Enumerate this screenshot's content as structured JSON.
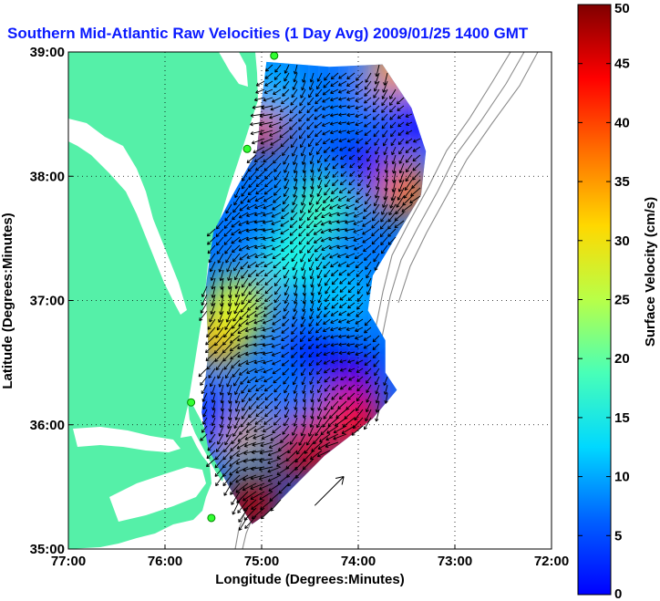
{
  "figure": {
    "title": "Southern Mid-Atlantic Raw Velocities (1 Day Avg) 2009/01/25 1400 GMT",
    "title_color": "#0a1aff",
    "background": "#ffffff"
  },
  "chart_data": {
    "type": "heatmap",
    "title": "Southern Mid-Atlantic Raw Velocities (1 Day Avg) 2009/01/25 1400 GMT",
    "xlabel": "Longitude (Degrees:Minutes)",
    "ylabel": "Latitude (Degrees:Minutes)",
    "xlim": [
      -77,
      -72
    ],
    "ylim": [
      35,
      39
    ],
    "x_ticks": [
      {
        "value": -77,
        "label": "77:00"
      },
      {
        "value": -76,
        "label": "76:00"
      },
      {
        "value": -75,
        "label": "75:00"
      },
      {
        "value": -74,
        "label": "74:00"
      },
      {
        "value": -73,
        "label": "73:00"
      },
      {
        "value": -72,
        "label": "72:00"
      }
    ],
    "y_ticks": [
      {
        "value": 35,
        "label": "35:00"
      },
      {
        "value": 36,
        "label": "36:00"
      },
      {
        "value": 37,
        "label": "37:00"
      },
      {
        "value": 38,
        "label": "38:00"
      },
      {
        "value": 39,
        "label": "39:00"
      }
    ],
    "grid": true,
    "colorbar": {
      "label": "Surface Velocity (cm/s)",
      "min": 0,
      "max": 50,
      "ticks": [
        0,
        5,
        10,
        15,
        20,
        25,
        30,
        35,
        40,
        45,
        50
      ],
      "colormap": "jet"
    },
    "land_color": "#55f0a8",
    "water_color": "#ffffff",
    "coverage_polygon_lonlat": [
      [
        -74.95,
        38.92
      ],
      [
        -74.3,
        38.88
      ],
      [
        -73.75,
        38.9
      ],
      [
        -73.45,
        38.55
      ],
      [
        -73.3,
        38.2
      ],
      [
        -73.35,
        37.85
      ],
      [
        -73.62,
        37.5
      ],
      [
        -73.85,
        37.2
      ],
      [
        -73.9,
        36.92
      ],
      [
        -73.72,
        36.68
      ],
      [
        -73.72,
        36.42
      ],
      [
        -73.6,
        36.28
      ],
      [
        -73.85,
        36.05
      ],
      [
        -74.35,
        35.75
      ],
      [
        -74.95,
        35.28
      ],
      [
        -75.1,
        35.2
      ],
      [
        -75.3,
        35.45
      ],
      [
        -75.55,
        35.8
      ],
      [
        -75.62,
        36.1
      ],
      [
        -75.55,
        36.6
      ],
      [
        -75.58,
        37.1
      ],
      [
        -75.5,
        37.55
      ],
      [
        -75.3,
        37.85
      ],
      [
        -75.05,
        38.2
      ],
      [
        -75.0,
        38.6
      ]
    ],
    "velocity_features": [
      {
        "lon": -75.0,
        "lat": 38.45,
        "speed": 42
      },
      {
        "lon": -73.55,
        "lat": 37.9,
        "speed": 38
      },
      {
        "lon": -73.6,
        "lat": 38.85,
        "speed": 36
      },
      {
        "lon": -75.45,
        "lat": 36.7,
        "speed": 35
      },
      {
        "lon": -75.25,
        "lat": 36.95,
        "speed": 30
      },
      {
        "lon": -74.4,
        "lat": 37.75,
        "speed": 22
      },
      {
        "lon": -74.2,
        "lat": 37.05,
        "speed": 16
      },
      {
        "lon": -74.7,
        "lat": 37.35,
        "speed": 20
      },
      {
        "lon": -74.4,
        "lat": 36.6,
        "speed": 8
      },
      {
        "lon": -74.0,
        "lat": 38.1,
        "speed": 6
      },
      {
        "lon": -73.4,
        "lat": 38.45,
        "speed": 7
      },
      {
        "lon": -74.1,
        "lat": 36.4,
        "speed": 5
      },
      {
        "lon": -74.6,
        "lat": 36.1,
        "speed": 12
      },
      {
        "lon": -74.55,
        "lat": 35.8,
        "speed": 46
      },
      {
        "lon": -74.05,
        "lat": 36.05,
        "speed": 44
      },
      {
        "lon": -75.1,
        "lat": 35.35,
        "speed": 48
      },
      {
        "lon": -75.3,
        "lat": 35.95,
        "speed": 35
      },
      {
        "lon": -75.55,
        "lat": 36.05,
        "speed": 9
      },
      {
        "lon": -74.9,
        "lat": 38.7,
        "speed": 15
      },
      {
        "lon": -74.05,
        "lat": 38.55,
        "speed": 12
      }
    ],
    "flow_direction_deg": 225,
    "reference_vector": {
      "lon": -74.45,
      "lat": 35.35,
      "speed": 50,
      "direction_deg": 45
    },
    "radar_sites": [
      {
        "lon": -74.87,
        "lat": 38.97
      },
      {
        "lon": -75.15,
        "lat": 38.22
      },
      {
        "lon": -75.73,
        "lat": 36.18
      },
      {
        "lon": -75.52,
        "lat": 35.25
      }
    ]
  }
}
